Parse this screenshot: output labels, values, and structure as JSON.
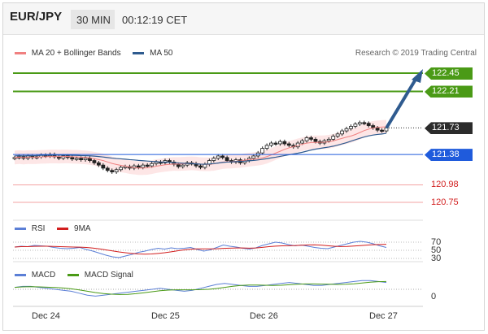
{
  "header": {
    "symbol": "EUR/JPY",
    "timeframe": "30 MIN",
    "time": "00:12:19 CET"
  },
  "legend_main": [
    {
      "name": "MA 20 + Bollinger Bands",
      "color": "#f08080"
    },
    {
      "name": "MA 50",
      "color": "#2f5b8f"
    }
  ],
  "credit": "Research © 2019 Trading Central",
  "levels": [
    {
      "value": "122.45",
      "style": "resistance",
      "color": "#4a9a16"
    },
    {
      "value": "122.21",
      "style": "resistance",
      "color": "#4a9a16"
    },
    {
      "value": "121.73",
      "style": "current",
      "color": "#2b2b2b"
    },
    {
      "value": "121.38",
      "style": "pivot",
      "color": "#1f5bdc"
    },
    {
      "value": "120.98",
      "style": "support",
      "color": "#d22020"
    },
    {
      "value": "120.75",
      "style": "support",
      "color": "#d22020"
    }
  ],
  "rsi": {
    "legend": [
      {
        "name": "RSI",
        "color": "#5b7fd6"
      },
      {
        "name": "9MA",
        "color": "#d21e1e"
      }
    ],
    "ticks": [
      "70",
      "50",
      "30"
    ]
  },
  "macd": {
    "legend": [
      {
        "name": "MACD",
        "color": "#5b7fd6"
      },
      {
        "name": "MACD Signal",
        "color": "#4a9a16"
      }
    ],
    "ticks": [
      "0"
    ]
  },
  "chart_data": {
    "type": "candlestick",
    "x_labels": [
      "Dec 24",
      "Dec 25",
      "Dec 26",
      "Dec 27"
    ],
    "ylim": [
      120.6,
      122.6
    ],
    "closes": [
      121.34,
      121.35,
      121.33,
      121.36,
      121.34,
      121.35,
      121.37,
      121.36,
      121.38,
      121.35,
      121.33,
      121.36,
      121.34,
      121.32,
      121.33,
      121.31,
      121.33,
      121.3,
      121.27,
      121.24,
      121.2,
      121.17,
      121.15,
      121.18,
      121.21,
      121.22,
      121.2,
      121.23,
      121.21,
      121.24,
      121.23,
      121.26,
      121.28,
      121.27,
      121.3,
      121.28,
      121.25,
      121.22,
      121.24,
      121.27,
      121.26,
      121.23,
      121.21,
      121.25,
      121.3,
      121.33,
      121.36,
      121.34,
      121.3,
      121.28,
      121.31,
      121.27,
      121.3,
      121.33,
      121.36,
      121.4,
      121.46,
      121.5,
      121.53,
      121.52,
      121.55,
      121.52,
      121.5,
      121.48,
      121.53,
      121.56,
      121.6,
      121.58,
      121.55,
      121.53,
      121.56,
      121.58,
      121.62,
      121.65,
      121.69,
      121.72,
      121.75,
      121.78,
      121.8,
      121.79,
      121.76,
      121.73,
      121.7,
      121.69,
      121.73
    ],
    "rsi": [
      58,
      60,
      59,
      62,
      61,
      60,
      57,
      55,
      54,
      55,
      57,
      52,
      48,
      43,
      38,
      34,
      32,
      36,
      40,
      45,
      48,
      52,
      55,
      53,
      56,
      54,
      55,
      57,
      52,
      48,
      51,
      57,
      63,
      60,
      58,
      55,
      53,
      56,
      62,
      66,
      70,
      68,
      64,
      61,
      63,
      60,
      57,
      55,
      54,
      58,
      62,
      66,
      70,
      72,
      70,
      66,
      61,
      57
    ],
    "macd": [
      0.02,
      0.03,
      0.03,
      0.02,
      0.01,
      0.0,
      -0.01,
      -0.02,
      -0.04,
      -0.06,
      -0.07,
      -0.06,
      -0.05,
      -0.04,
      -0.03,
      -0.02,
      -0.01,
      0.0,
      0.01,
      0.0,
      -0.01,
      -0.02,
      -0.01,
      0.01,
      0.03,
      0.05,
      0.06,
      0.05,
      0.04,
      0.03,
      0.03,
      0.04,
      0.05,
      0.06,
      0.07,
      0.06,
      0.05,
      0.04,
      0.04,
      0.05,
      0.06,
      0.07,
      0.08,
      0.09,
      0.09,
      0.08,
      0.07
    ]
  }
}
